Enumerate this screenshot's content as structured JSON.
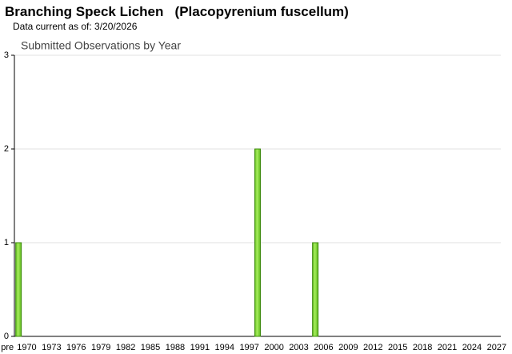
{
  "chart_data": {
    "type": "bar",
    "title": "Branching Speck Lichen   (Placopyrenium fuscellum)",
    "subtitle": "Data current as of: 3/20/2026",
    "chart_title": "Submitted Observations by Year",
    "categories": [
      "pre",
      "1970",
      null,
      null,
      "1973",
      null,
      null,
      "1976",
      null,
      null,
      "1979",
      null,
      null,
      "1982",
      null,
      null,
      "1985",
      null,
      null,
      "1988",
      null,
      null,
      "1991",
      null,
      null,
      "1994",
      null,
      null,
      "1997",
      null,
      null,
      "2000",
      null,
      null,
      "2003",
      null,
      null,
      "2006",
      null,
      null,
      "2009",
      null,
      null,
      "2012",
      null,
      null,
      "2015",
      null,
      null,
      "2018",
      null,
      null,
      "2021",
      null,
      null,
      "2024",
      null,
      null,
      "2027"
    ],
    "values": [
      1,
      0,
      0,
      0,
      0,
      0,
      0,
      0,
      0,
      0,
      0,
      0,
      0,
      0,
      0,
      0,
      0,
      0,
      0,
      0,
      0,
      0,
      0,
      0,
      0,
      0,
      0,
      0,
      0,
      2,
      0,
      0,
      0,
      0,
      0,
      0,
      1,
      0,
      0,
      0,
      0,
      0,
      0,
      0,
      0,
      0,
      0,
      0,
      0,
      0,
      0,
      0,
      0,
      0,
      0,
      0,
      0,
      0,
      0
    ],
    "color": "#7ed62e",
    "ylim": [
      0,
      3
    ],
    "yticks": [
      0,
      1,
      2,
      3
    ],
    "grid": true
  }
}
